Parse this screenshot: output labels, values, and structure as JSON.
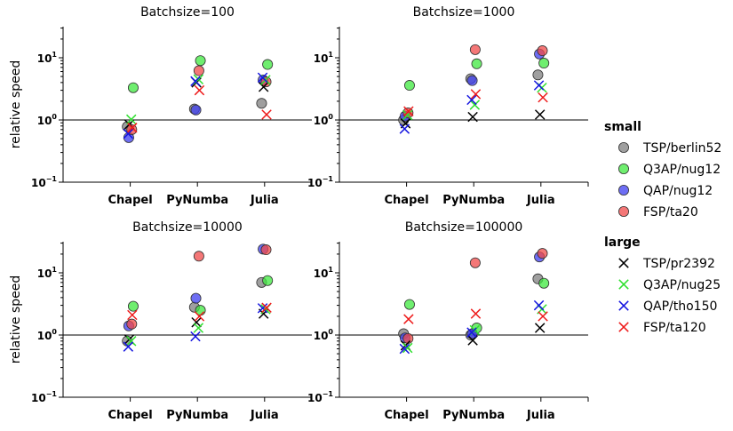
{
  "chart_data": {
    "type": "scatter",
    "yscale": "log",
    "ylabel": "relative speed",
    "reference_line_y": 1,
    "categories": [
      "Chapel",
      "PyNumba",
      "Julia"
    ],
    "yticks": [
      {
        "base": "10",
        "exp": "-1"
      },
      {
        "base": "10",
        "exp": "0"
      },
      {
        "base": "10",
        "exp": "1"
      }
    ],
    "legend": {
      "placement": "right",
      "groups": [
        {
          "title": "small",
          "marker": "circle",
          "entries": [
            {
              "label": "TSP/berlin52",
              "color": "#7f7f7f"
            },
            {
              "label": "Q3AP/nug12",
              "color": "#3fe83f"
            },
            {
              "label": "QAP/nug12",
              "color": "#3d3df0"
            },
            {
              "label": "FSP/ta20",
              "color": "#f04a4a"
            }
          ]
        },
        {
          "title": "large",
          "marker": "x",
          "entries": [
            {
              "label": "TSP/pr2392",
              "color": "#000000"
            },
            {
              "label": "Q3AP/nug25",
              "color": "#2ee02e"
            },
            {
              "label": "QAP/tho150",
              "color": "#1414e0"
            },
            {
              "label": "FSP/ta120",
              "color": "#ee1b1b"
            }
          ]
        }
      ]
    },
    "panels": [
      {
        "title": "Batchsize=100",
        "series": [
          {
            "name": "TSP/berlin52",
            "marker": "circle",
            "color": "#7f7f7f",
            "values": [
              0.78,
              1.5,
              1.85
            ]
          },
          {
            "name": "Q3AP/nug12",
            "marker": "circle",
            "color": "#3fe83f",
            "values": [
              3.3,
              9.0,
              7.8
            ]
          },
          {
            "name": "QAP/nug12",
            "marker": "circle",
            "color": "#3d3df0",
            "values": [
              0.52,
              1.45,
              4.4
            ]
          },
          {
            "name": "FSP/ta20",
            "marker": "circle",
            "color": "#f04a4a",
            "values": [
              0.7,
              6.2,
              4.1
            ]
          },
          {
            "name": "TSP/pr2392",
            "marker": "x",
            "color": "#000000",
            "values": [
              0.85,
              4.0,
              3.4
            ]
          },
          {
            "name": "Q3AP/nug25",
            "marker": "x",
            "color": "#2ee02e",
            "values": [
              1.02,
              4.5,
              4.4
            ]
          },
          {
            "name": "QAP/tho150",
            "marker": "x",
            "color": "#1414e0",
            "values": [
              0.6,
              4.2,
              4.8
            ]
          },
          {
            "name": "FSP/ta120",
            "marker": "x",
            "color": "#ee1b1b",
            "values": [
              0.75,
              3.0,
              1.22
            ]
          }
        ]
      },
      {
        "title": "Batchsize=1000",
        "series": [
          {
            "name": "TSP/berlin52",
            "marker": "circle",
            "color": "#7f7f7f",
            "values": [
              1.0,
              4.6,
              5.3
            ]
          },
          {
            "name": "Q3AP/nug12",
            "marker": "circle",
            "color": "#3fe83f",
            "values": [
              3.6,
              8.0,
              8.2
            ]
          },
          {
            "name": "QAP/nug12",
            "marker": "circle",
            "color": "#3d3df0",
            "values": [
              1.15,
              4.3,
              11.5
            ]
          },
          {
            "name": "FSP/ta20",
            "marker": "circle",
            "color": "#f04a4a",
            "values": [
              1.3,
              13.5,
              13.0
            ]
          },
          {
            "name": "TSP/pr2392",
            "marker": "x",
            "color": "#000000",
            "values": [
              0.88,
              1.12,
              1.22
            ]
          },
          {
            "name": "Q3AP/nug25",
            "marker": "x",
            "color": "#2ee02e",
            "values": [
              1.2,
              1.75,
              3.3
            ]
          },
          {
            "name": "QAP/tho150",
            "marker": "x",
            "color": "#1414e0",
            "values": [
              0.72,
              2.1,
              3.6
            ]
          },
          {
            "name": "FSP/ta120",
            "marker": "x",
            "color": "#ee1b1b",
            "values": [
              1.38,
              2.6,
              2.3
            ]
          }
        ]
      },
      {
        "title": "Batchsize=10000",
        "series": [
          {
            "name": "TSP/berlin52",
            "marker": "circle",
            "color": "#7f7f7f",
            "values": [
              0.8,
              2.8,
              7.0
            ]
          },
          {
            "name": "Q3AP/nug12",
            "marker": "circle",
            "color": "#3fe83f",
            "values": [
              2.9,
              2.5,
              7.5
            ]
          },
          {
            "name": "QAP/nug12",
            "marker": "circle",
            "color": "#3d3df0",
            "values": [
              1.4,
              3.9,
              24.0
            ]
          },
          {
            "name": "FSP/ta20",
            "marker": "circle",
            "color": "#f04a4a",
            "values": [
              1.5,
              18.5,
              23.5
            ]
          },
          {
            "name": "TSP/pr2392",
            "marker": "x",
            "color": "#000000",
            "values": [
              0.85,
              1.6,
              2.2
            ]
          },
          {
            "name": "Q3AP/nug25",
            "marker": "x",
            "color": "#2ee02e",
            "values": [
              0.8,
              1.3,
              2.6
            ]
          },
          {
            "name": "QAP/tho150",
            "marker": "x",
            "color": "#1414e0",
            "values": [
              0.65,
              0.95,
              2.7
            ]
          },
          {
            "name": "FSP/ta120",
            "marker": "x",
            "color": "#ee1b1b",
            "values": [
              2.1,
              2.0,
              2.75
            ]
          }
        ]
      },
      {
        "title": "Batchsize=100000",
        "series": [
          {
            "name": "TSP/berlin52",
            "marker": "circle",
            "color": "#7f7f7f",
            "values": [
              1.05,
              1.0,
              8.0
            ]
          },
          {
            "name": "Q3AP/nug12",
            "marker": "circle",
            "color": "#3fe83f",
            "values": [
              3.1,
              1.3,
              6.8
            ]
          },
          {
            "name": "QAP/nug12",
            "marker": "circle",
            "color": "#3d3df0",
            "values": [
              0.9,
              1.05,
              18.0
            ]
          },
          {
            "name": "FSP/ta20",
            "marker": "circle",
            "color": "#f04a4a",
            "values": [
              0.88,
              14.5,
              20.5
            ]
          },
          {
            "name": "TSP/pr2392",
            "marker": "x",
            "color": "#000000",
            "values": [
              0.68,
              0.82,
              1.3
            ]
          },
          {
            "name": "Q3AP/nug25",
            "marker": "x",
            "color": "#2ee02e",
            "values": [
              0.62,
              1.2,
              2.6
            ]
          },
          {
            "name": "QAP/tho150",
            "marker": "x",
            "color": "#1414e0",
            "values": [
              0.6,
              1.1,
              3.0
            ]
          },
          {
            "name": "FSP/ta120",
            "marker": "x",
            "color": "#ee1b1b",
            "values": [
              1.8,
              2.2,
              2.0
            ]
          }
        ]
      }
    ]
  }
}
